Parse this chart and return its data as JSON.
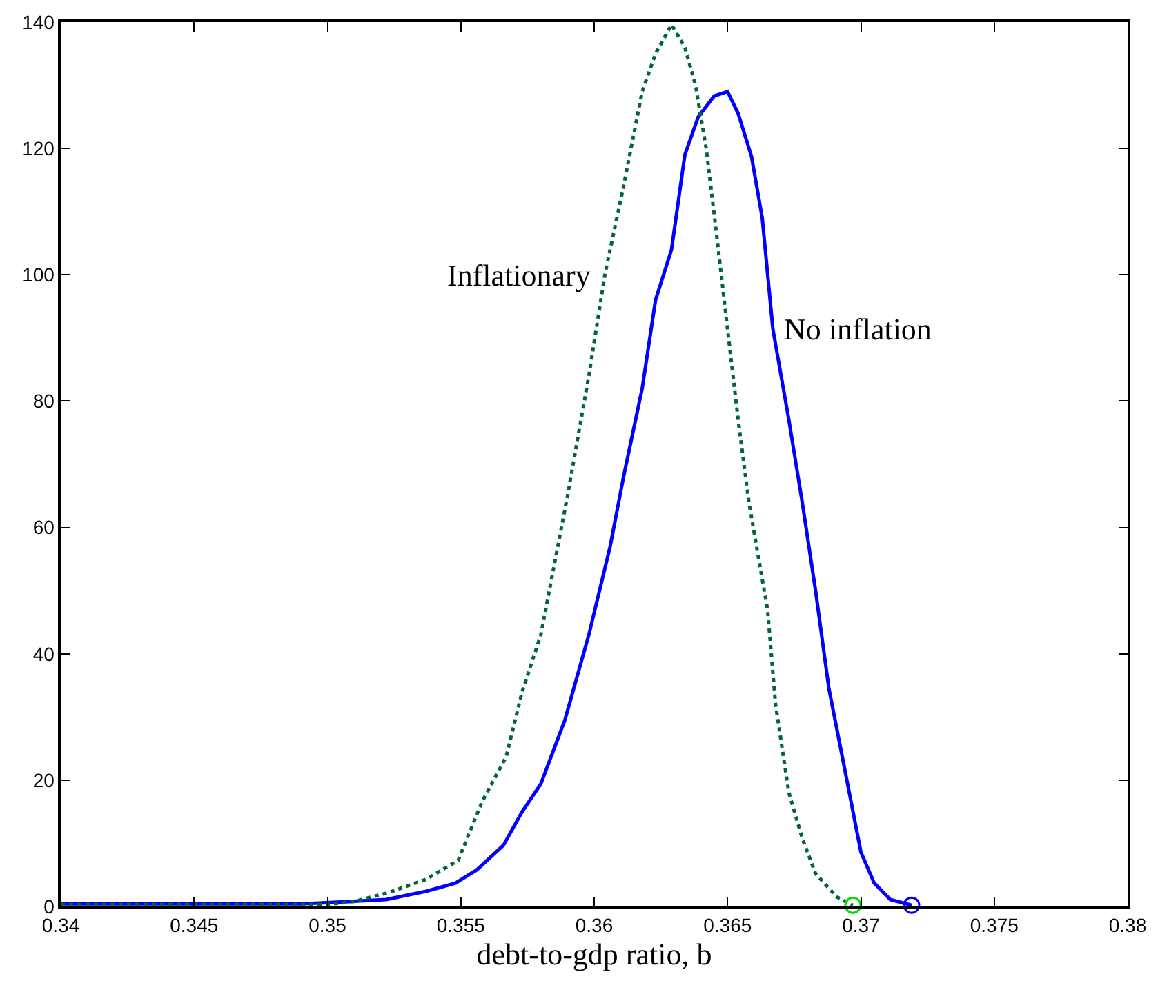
{
  "chart_data": {
    "type": "line",
    "xlabel": "debt-to-gdp ratio, b",
    "xlim": [
      0.34,
      0.38
    ],
    "ylim": [
      0,
      140
    ],
    "xticks": [
      0.34,
      0.345,
      0.35,
      0.355,
      0.36,
      0.365,
      0.37,
      0.375,
      0.38
    ],
    "yticks": [
      0,
      20,
      40,
      60,
      80,
      100,
      120,
      140
    ],
    "legend": false,
    "series": [
      {
        "name": "No inflation",
        "color": "#0000ff",
        "line_style": "solid",
        "marker": "none",
        "x": [
          0.34,
          0.345,
          0.349,
          0.3505,
          0.3522,
          0.3537,
          0.3548,
          0.3556,
          0.3566,
          0.3573,
          0.358,
          0.3589,
          0.3598,
          0.3606,
          0.3611,
          0.3618,
          0.3623,
          0.3629,
          0.3634,
          0.3639,
          0.3645,
          0.365,
          0.3654,
          0.3659,
          0.3663,
          0.3667,
          0.3673,
          0.3678,
          0.3683,
          0.3688,
          0.3694,
          0.37,
          0.3705,
          0.3711,
          0.3719
        ],
        "values": [
          0.4,
          0.4,
          0.4,
          0.7,
          1.1,
          2.4,
          3.7,
          5.8,
          9.7,
          15,
          19.4,
          29.5,
          43,
          57,
          68,
          82,
          96,
          104,
          119,
          125,
          128.3,
          129,
          125.5,
          118.7,
          109,
          91.4,
          77,
          64,
          50,
          34.5,
          21.6,
          8.6,
          3.7,
          1.1,
          0.2
        ]
      },
      {
        "name": "Inflationary",
        "color": "#006633",
        "line_style": "dotted",
        "marker": "none",
        "x": [
          0.34,
          0.345,
          0.35,
          0.351,
          0.3523,
          0.3537,
          0.3549,
          0.3558,
          0.3567,
          0.3573,
          0.358,
          0.3585,
          0.359,
          0.3598,
          0.3604,
          0.3611,
          0.3618,
          0.3623,
          0.3629,
          0.3634,
          0.3638,
          0.3642,
          0.3646,
          0.365,
          0.3654,
          0.3658,
          0.3665,
          0.3668,
          0.3673,
          0.3678,
          0.3683,
          0.3691,
          0.3697
        ],
        "values": [
          0.3,
          0.3,
          0.3,
          0.8,
          2.2,
          4.3,
          7.3,
          16.6,
          23.7,
          34,
          43,
          54,
          65,
          84,
          100,
          114,
          129,
          135,
          139.6,
          136,
          130,
          120,
          106,
          91.4,
          77,
          64,
          47,
          32,
          18,
          10.8,
          5.2,
          1.5,
          0.2
        ]
      },
      {
        "type": "scatter",
        "color": "#0000ff",
        "marker": "circle",
        "x": [
          0.3719
        ],
        "values": [
          0.2
        ]
      },
      {
        "type": "scatter",
        "color": "#00dd00",
        "marker": "circle",
        "x": [
          0.3697
        ],
        "values": [
          0.2
        ]
      }
    ]
  }
}
